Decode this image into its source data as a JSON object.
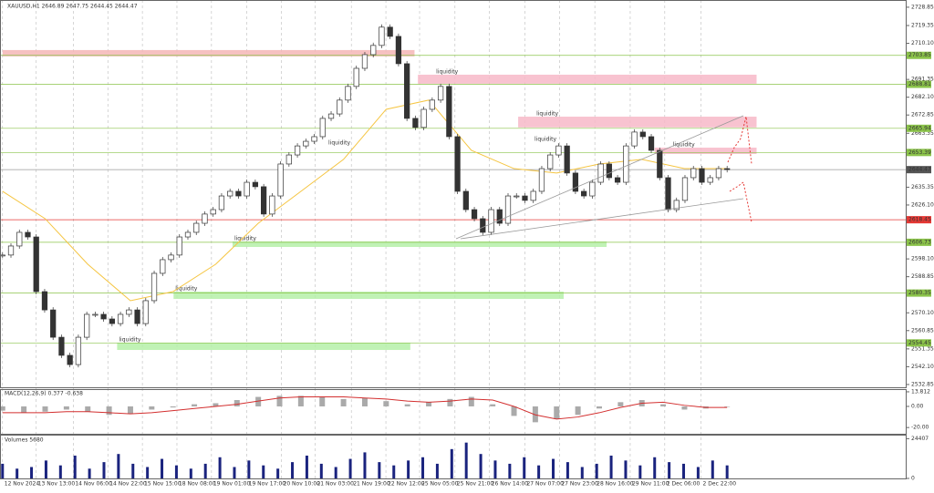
{
  "chart_data": {
    "type": "candlestick",
    "header": "XAUUSD,H1  2646.89 2647.75 2644.45 2644.47",
    "xlim": [
      -0.3,
      107.2
    ],
    "ylim": [
      2531.4,
      2732.6
    ],
    "grid": true,
    "yticks": [
      {
        "value": 2728.85,
        "label": "2728.85"
      },
      {
        "value": 2719.35,
        "label": "2719.35"
      },
      {
        "value": 2710.1,
        "label": "2710.10"
      },
      {
        "value": 2691.35,
        "label": "2691.35"
      },
      {
        "value": 2682.1,
        "label": "2682.10"
      },
      {
        "value": 2672.85,
        "label": "2672.85"
      },
      {
        "value": 2663.35,
        "label": "2663.35"
      },
      {
        "value": 2635.35,
        "label": "2635.35"
      },
      {
        "value": 2626.1,
        "label": "2626.10"
      },
      {
        "value": 2598.1,
        "label": "2598.10"
      },
      {
        "value": 2588.85,
        "label": "2588.85"
      },
      {
        "value": 2570.1,
        "label": "2570.10"
      },
      {
        "value": 2560.85,
        "label": "2560.85"
      },
      {
        "value": 2551.35,
        "label": "2551.35"
      },
      {
        "value": 2542.1,
        "label": "2542.10"
      },
      {
        "value": 2532.85,
        "label": "2532.85"
      }
    ],
    "xticks": [
      {
        "value": 0,
        "label": "12 Nov 2024"
      },
      {
        "value": 4.0,
        "label": "13 Nov 13:00"
      },
      {
        "value": 8.4,
        "label": "14 Nov 06:00"
      },
      {
        "value": 12.5,
        "label": "14 Nov 22:00"
      },
      {
        "value": 16.6,
        "label": "15 Nov 15:00"
      },
      {
        "value": 20.7,
        "label": "18 Nov 08:00"
      },
      {
        "value": 24.8,
        "label": "19 Nov 01:00"
      },
      {
        "value": 29.0,
        "label": "19 Nov 17:00"
      },
      {
        "value": 33.1,
        "label": "20 Nov 10:00"
      },
      {
        "value": 37.1,
        "label": "21 Nov 03:00"
      },
      {
        "value": 41.4,
        "label": "21 Nov 19:00"
      },
      {
        "value": 45.5,
        "label": "22 Nov 12:00"
      },
      {
        "value": 49.5,
        "label": "25 Nov 05:00"
      },
      {
        "value": 53.7,
        "label": "25 Nov 21:00"
      },
      {
        "value": 57.8,
        "label": "26 Nov 14:00"
      },
      {
        "value": 62.0,
        "label": "27 Nov 07:00"
      },
      {
        "value": 66.1,
        "label": "27 Nov 23:00"
      },
      {
        "value": 70.3,
        "label": "28 Nov 16:00"
      },
      {
        "value": 74.5,
        "label": "29 Nov 11:00"
      },
      {
        "value": 78.6,
        "label": "2 Dec 06:00"
      },
      {
        "value": 82.9,
        "label": "2 Dec 22:00"
      }
    ],
    "closes": [
      2600.1,
      2604.8,
      2611.9,
      2609.5,
      2581.1,
      2571.6,
      2557.4,
      2548.0,
      2543.2,
      2557.4,
      2569.3,
      2569.3,
      2566.9,
      2564.5,
      2569.3,
      2571.6,
      2564.5,
      2576.4,
      2590.6,
      2597.7,
      2600.1,
      2609.5,
      2611.9,
      2616.6,
      2621.4,
      2623.7,
      2630.8,
      2633.2,
      2630.8,
      2637.9,
      2635.6,
      2621.4,
      2630.8,
      2647.4,
      2652.1,
      2656.8,
      2659.2,
      2661.6,
      2671.1,
      2673.4,
      2680.6,
      2687.7,
      2697.1,
      2704.2,
      2709.0,
      2718.5,
      2713.7,
      2699.5,
      2671.1,
      2666.4,
      2675.8,
      2680.6,
      2687.7,
      2661.6,
      2633.2,
      2623.7,
      2619.0,
      2611.9,
      2623.7,
      2616.6,
      2630.8,
      2630.8,
      2628.5,
      2633.2,
      2645.0,
      2652.1,
      2656.8,
      2642.7,
      2633.2,
      2630.8,
      2637.9,
      2647.4,
      2640.3,
      2637.9,
      2656.8,
      2664.0,
      2661.6,
      2654.5,
      2640.3,
      2623.7,
      2628.5,
      2640.3,
      2645.0,
      2637.9,
      2640.3,
      2645.0,
      2644.47
    ],
    "ma": {
      "color": "#f5c542",
      "values": [
        2633.2,
        2619.0,
        2595.3,
        2576.4,
        2581.1,
        2595.3,
        2616.6,
        2633.2,
        2649.8,
        2675.8,
        2680.6,
        2654.5,
        2645.0,
        2642.7,
        2647.4,
        2649.8,
        2645.0,
        2645.0
      ]
    },
    "levels": [
      {
        "value": 2703.85,
        "color": "#8bc34a"
      },
      {
        "value": 2688.81,
        "color": "#8bc34a"
      },
      {
        "value": 2665.94,
        "color": "#8bc34a"
      },
      {
        "value": 2653.39,
        "color": "#8bc34a"
      },
      {
        "value": 2644.47,
        "color": "#555555"
      },
      {
        "value": 2618.45,
        "color": "#e53935"
      },
      {
        "value": 2606.73,
        "color": "#8bc34a"
      },
      {
        "value": 2580.35,
        "color": "#8bc34a"
      },
      {
        "value": 2554.45,
        "color": "#8bc34a"
      }
    ],
    "zones": [
      {
        "low": 2703.3,
        "high": 2706.6,
        "start": 0,
        "end": 48.9,
        "color": "#f4b6b6"
      },
      {
        "low": 2689.1,
        "high": 2693.8,
        "start": 49.3,
        "end": 89.5,
        "color": "#f7b9c8",
        "label": "liquidity"
      },
      {
        "low": 2666.4,
        "high": 2672.0,
        "start": 61.2,
        "end": 89.5,
        "color": "#f7b9c8",
        "label": "liquidity"
      },
      {
        "low": 2652.6,
        "high": 2655.9,
        "start": 77.4,
        "end": 89.5,
        "color": "#f7b9c8",
        "label": "liquidity"
      },
      {
        "low": 2604.3,
        "high": 2607.2,
        "start": 27.3,
        "end": 71.7,
        "color": "#b5f0a8",
        "label": "liquidity"
      },
      {
        "low": 2577.3,
        "high": 2581.1,
        "start": 20.3,
        "end": 66.6,
        "color": "#b5f0a8",
        "label": "liquidity"
      },
      {
        "low": 2550.8,
        "high": 2554.6,
        "start": 13.6,
        "end": 48.4,
        "color": "#b5f0a8",
        "label": "liquidity"
      }
    ],
    "annotations": [
      "liquidity",
      "liquidity"
    ],
    "macd": {
      "title": "MACD(12,26,9) 0.377 -0.638",
      "ylim": [
        -25.9,
        15.5
      ],
      "yticks": [
        {
          "value": 13.812,
          "label": "13.812"
        },
        {
          "value": 0,
          "label": "0.00"
        },
        {
          "value": -20,
          "label": "-20.00"
        }
      ],
      "histogram": [
        -4,
        -6,
        -5,
        -3,
        -5,
        -8,
        -7,
        -3,
        -1,
        2,
        3,
        6,
        9,
        10,
        10,
        9,
        7,
        8,
        5,
        2,
        4,
        7,
        9,
        2,
        -9,
        -15,
        -12,
        -8,
        -2,
        4,
        6,
        2,
        -3,
        -2,
        0
      ],
      "signal": {
        "color": "#d32f2f",
        "values": [
          -6,
          -6,
          -6,
          -5,
          -5,
          -6,
          -7,
          -6,
          -4,
          -2,
          0,
          2,
          5,
          8,
          9,
          9,
          9,
          8,
          7,
          5,
          4,
          5,
          7,
          6,
          0,
          -8,
          -12,
          -10,
          -6,
          -1,
          3,
          4,
          1,
          -1,
          -1
        ]
      }
    },
    "volumes": {
      "title": "Volumes 5680",
      "ylim": [
        0,
        26300
      ],
      "yticks": [
        24407,
        0
      ],
      "color": "#1a237e",
      "values": [
        9000,
        6000,
        7000,
        11000,
        8000,
        14000,
        6000,
        10000,
        15000,
        9000,
        7000,
        12000,
        8000,
        6000,
        9000,
        13000,
        7000,
        11000,
        8000,
        6000,
        10000,
        14000,
        9000,
        7000,
        12000,
        16000,
        10000,
        8000,
        11000,
        13000,
        9000,
        18000,
        22000,
        15000,
        11000,
        9000,
        13000,
        8000,
        12000,
        10000,
        7000,
        9000,
        14000,
        11000,
        8000,
        13000,
        10000,
        9000,
        7000,
        11000,
        8000
      ]
    }
  }
}
